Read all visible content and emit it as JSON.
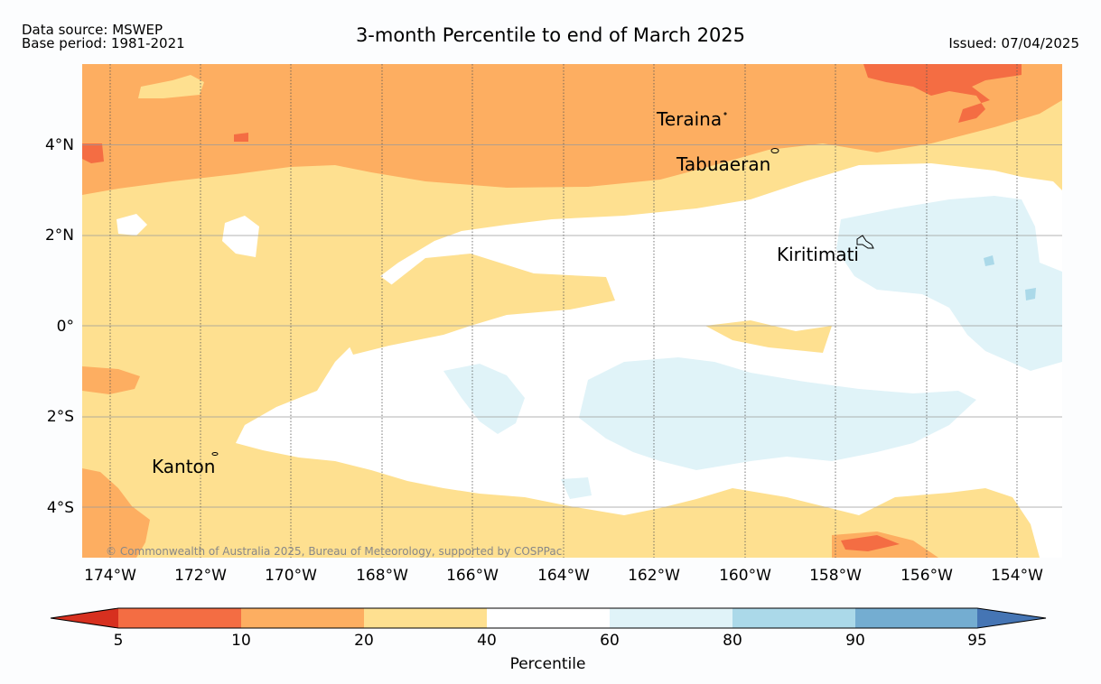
{
  "header": {
    "source": "Data source: MSWEP",
    "base_period": "Base period: 1981-2021",
    "title": "3-month Percentile to end of March 2025",
    "issued": "Issued: 07/04/2025"
  },
  "map": {
    "copyright": "© Commonwealth of Australia 2025, Bureau of Meteorology, supported by COSPPac",
    "lon_range": [
      -174.6,
      -153.0
    ],
    "lat_range": [
      -5.1,
      5.8
    ],
    "x_ticks": [
      "174°W",
      "172°W",
      "170°W",
      "168°W",
      "166°W",
      "164°W",
      "162°W",
      "160°W",
      "158°W",
      "156°W",
      "154°W"
    ],
    "y_ticks": [
      "4°N",
      "2°N",
      "0°",
      "2°S",
      "4°S"
    ],
    "places": [
      {
        "name": "Teraina",
        "lon": -160.4,
        "lat": 4.68
      },
      {
        "name": "Tabuaeran",
        "lon": -159.3,
        "lat": 3.85
      },
      {
        "name": "Kiritimati",
        "lon": -157.4,
        "lat": 1.87
      },
      {
        "name": "Kanton",
        "lon": -171.7,
        "lat": -2.82
      }
    ]
  },
  "colorbar": {
    "label": "Percentile",
    "ticks": [
      "5",
      "10",
      "20",
      "40",
      "60",
      "80",
      "90",
      "95"
    ],
    "colors": [
      "#d7301f",
      "#f46d43",
      "#fdae61",
      "#fee090",
      "#ffffff",
      "#e0f3f8",
      "#abd9e9",
      "#74add1",
      "#4575b4"
    ]
  }
}
